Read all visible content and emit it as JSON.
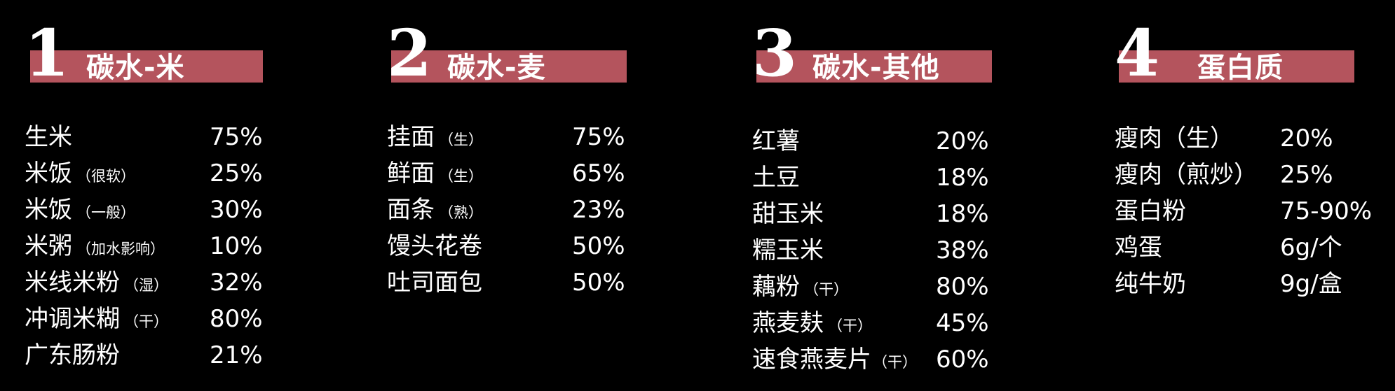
{
  "sections": [
    {
      "number": "1",
      "title": "碳水-米",
      "items": [
        {
          "name": "生米",
          "note": "",
          "value": "75%"
        },
        {
          "name": "米饭",
          "note": "（很软）",
          "value": "25%"
        },
        {
          "name": "米饭",
          "note": "（一般）",
          "value": "30%"
        },
        {
          "name": "米粥",
          "note": "（加水影响）",
          "value": "10%"
        },
        {
          "name": "米线米粉",
          "note": "（湿）",
          "value": "32%"
        },
        {
          "name": "冲调米糊",
          "note": "（干）",
          "value": "80%"
        },
        {
          "name": "广东肠粉",
          "note": "",
          "value": "21%"
        }
      ]
    },
    {
      "number": "2",
      "title": "碳水-麦",
      "items": [
        {
          "name": "挂面",
          "note": "（生）",
          "value": "75%"
        },
        {
          "name": "鲜面",
          "note": "（生）",
          "value": "65%"
        },
        {
          "name": "面条",
          "note": "（熟）",
          "value": "23%"
        },
        {
          "name": "馒头花卷",
          "note": "",
          "value": "50%"
        },
        {
          "name": "吐司面包",
          "note": "",
          "value": "50%"
        }
      ]
    },
    {
      "number": "3",
      "title": "碳水-其他",
      "items": [
        {
          "name": "红薯",
          "note": "",
          "value": "20%"
        },
        {
          "name": "土豆",
          "note": "",
          "value": "18%"
        },
        {
          "name": "甜玉米",
          "note": "",
          "value": "18%"
        },
        {
          "name": "糯玉米",
          "note": "",
          "value": "38%"
        },
        {
          "name": "藕粉",
          "note": "（干）",
          "value": "80%"
        },
        {
          "name": "燕麦麸",
          "note": "（干）",
          "value": "45%"
        },
        {
          "name": "速食燕麦片",
          "note": "（干）",
          "value": "60%"
        }
      ]
    },
    {
      "number": "4",
      "title": "蛋白质",
      "items": [
        {
          "name": "瘦肉（生）",
          "note": "",
          "value": "20%"
        },
        {
          "name": "瘦肉（煎炒）",
          "note": "",
          "value": "25%"
        },
        {
          "name": "蛋白粉",
          "note": "",
          "value": "75-90%"
        },
        {
          "name": "鸡蛋",
          "note": "",
          "value": "6g/个"
        },
        {
          "name": "纯牛奶",
          "note": "",
          "value": "9g/盒"
        }
      ]
    }
  ],
  "colors": {
    "background": "#000000",
    "accent": "#b4545d",
    "text": "#ffffff"
  }
}
